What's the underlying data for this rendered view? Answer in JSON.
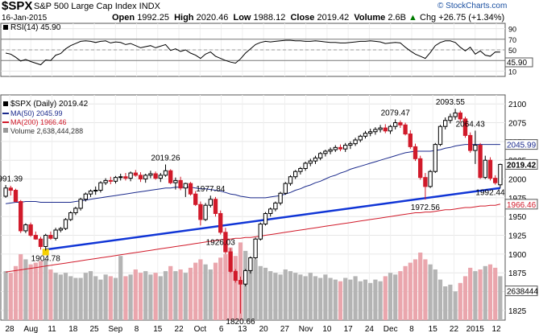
{
  "header": {
    "symbol": "$SPX",
    "name": "S&P 500 Large Cap Index INDX",
    "date": "16-Jan-2015",
    "open_label": "Open",
    "open": "1992.25",
    "high_label": "High",
    "high": "2020.46",
    "low_label": "Low",
    "low": "1988.12",
    "close_label": "Close",
    "close": "2019.42",
    "volume_label": "Volume",
    "volume": "2.6B",
    "change": "Chg +26.75 (+1.34%)",
    "change_arrow": "▲",
    "credit": "© StockCharts.com"
  },
  "rsi_panel": {
    "legend": "RSI(14) 45.90",
    "current_badge": "45.90",
    "ticks": [
      "90",
      "70",
      "50",
      "30",
      "10"
    ]
  },
  "legend": {
    "price": "$SPX (Daily) 2019.42",
    "ma50": "MA(50) 2045.99",
    "ma200": "MA(200) 1966.46",
    "volume": "Volume 2,638,444,288"
  },
  "price_axis": {
    "ticks": [
      "2100",
      "2075",
      "2050",
      "2025",
      "2000",
      "1975",
      "1950",
      "1925",
      "1900",
      "1875",
      "1850",
      "1825"
    ],
    "badges": {
      "ma50": "2045.99",
      "close": "2019.42",
      "ma200": "1966.46",
      "volume": "2638444"
    }
  },
  "annotations": [
    {
      "text": "1991.39",
      "value": 1991.39
    },
    {
      "text": "1904.78",
      "value": 1904.78
    },
    {
      "text": "2019.26",
      "value": 2019.26
    },
    {
      "text": "1977.84",
      "value": 1977.84
    },
    {
      "text": "1926.03",
      "value": 1926.03
    },
    {
      "text": "1820.66",
      "value": 1820.66
    },
    {
      "text": "2079.47",
      "value": 2079.47
    },
    {
      "text": "1972.56",
      "value": 1972.56
    },
    {
      "text": "2093.55",
      "value": 2093.55
    },
    {
      "text": "2064.43",
      "value": 2064.43
    },
    {
      "text": "1992.44",
      "value": 1992.44
    }
  ],
  "x_axis": {
    "labels": [
      "28",
      "Aug",
      "11",
      "18",
      "25",
      "Sep",
      "8",
      "15",
      "22",
      "Oct",
      "6",
      "13",
      "20",
      "27",
      "Nov",
      "10",
      "17",
      "24",
      "Dec",
      "8",
      "15",
      "22",
      "2015",
      "12"
    ]
  },
  "colors": {
    "up": "#000000",
    "down": "#d11a2a",
    "ma50": "#1b2a8c",
    "ma200": "#d11a2a",
    "trendline": "#1035d6",
    "vol_up": "#b4b4b4",
    "vol_down": "#eaa6ad",
    "rsi": "#000000"
  },
  "chart_data": {
    "type": "candlestick",
    "title": "$SPX S&P 500 Large Cap Index INDX",
    "ylim": [
      1812,
      2112
    ],
    "rsi_ylim": [
      0,
      100
    ],
    "ohlc": [
      [
        1977,
        1992,
        1975,
        1988
      ],
      [
        1988,
        1991,
        1978,
        1985
      ],
      [
        1985,
        1987,
        1969,
        1970
      ],
      [
        1970,
        1972,
        1928,
        1931
      ],
      [
        1931,
        1941,
        1928,
        1939
      ],
      [
        1939,
        1942,
        1923,
        1925
      ],
      [
        1925,
        1930,
        1919,
        1920
      ],
      [
        1920,
        1923,
        1906,
        1910
      ],
      [
        1910,
        1927,
        1904.78,
        1925
      ],
      [
        1925,
        1930,
        1919,
        1921
      ],
      [
        1921,
        1935,
        1918,
        1932
      ],
      [
        1932,
        1936,
        1929,
        1934
      ],
      [
        1934,
        1948,
        1932,
        1946
      ],
      [
        1946,
        1957,
        1944,
        1955
      ],
      [
        1955,
        1963,
        1952,
        1961
      ],
      [
        1961,
        1975,
        1958,
        1973
      ],
      [
        1973,
        1982,
        1970,
        1980
      ],
      [
        1980,
        1986,
        1976,
        1984
      ],
      [
        1984,
        1990,
        1979,
        1985
      ],
      [
        1985,
        1997,
        1982,
        1995
      ],
      [
        1995,
        2001,
        1992,
        1998
      ],
      [
        1998,
        2003,
        1993,
        1997
      ],
      [
        1997,
        2004,
        1994,
        2002
      ],
      [
        2002,
        2007,
        1998,
        2003
      ],
      [
        2003,
        2008,
        1998,
        2001
      ],
      [
        2001,
        2010,
        1997,
        2008
      ],
      [
        2008,
        2012,
        2003,
        2005
      ],
      [
        2005,
        2009,
        1996,
        2000
      ],
      [
        2000,
        2007,
        1995,
        2005
      ],
      [
        2005,
        2011,
        2001,
        2007
      ],
      [
        2007,
        2010,
        1999,
        2001
      ],
      [
        2001,
        2008,
        1996,
        2005
      ],
      [
        2005,
        2019.26,
        2003,
        2011
      ],
      [
        2011,
        2013,
        1993,
        1995
      ],
      [
        1995,
        2002,
        1986,
        1998
      ],
      [
        1998,
        2003,
        1985,
        1988
      ],
      [
        1988,
        1995,
        1976,
        1994
      ],
      [
        1994,
        1996,
        1978,
        1980
      ],
      [
        1980,
        1984,
        1964,
        1966
      ],
      [
        1966,
        1970,
        1938,
        1946
      ],
      [
        1946,
        1968,
        1944,
        1965
      ],
      [
        1965,
        1977.84,
        1962,
        1973
      ],
      [
        1973,
        1976,
        1950,
        1954
      ],
      [
        1954,
        1958,
        1926.03,
        1929
      ],
      [
        1929,
        1935,
        1900,
        1903
      ],
      [
        1903,
        1908,
        1875,
        1877
      ],
      [
        1877,
        1880,
        1862,
        1865
      ],
      [
        1865,
        1870,
        1820.66,
        1860
      ],
      [
        1860,
        1880,
        1857,
        1878
      ],
      [
        1878,
        1897,
        1874,
        1895
      ],
      [
        1895,
        1922,
        1893,
        1920
      ],
      [
        1920,
        1942,
        1918,
        1940
      ],
      [
        1940,
        1956,
        1938,
        1954
      ],
      [
        1954,
        1962,
        1950,
        1960
      ],
      [
        1960,
        1970,
        1957,
        1968
      ],
      [
        1968,
        1983,
        1965,
        1981
      ],
      [
        1981,
        1996,
        1979,
        1994
      ],
      [
        1994,
        2005,
        1991,
        2003
      ],
      [
        2003,
        2012,
        2000,
        2010
      ],
      [
        2010,
        2016,
        2006,
        2014
      ],
      [
        2014,
        2023,
        2011,
        2021
      ],
      [
        2021,
        2027,
        2017,
        2024
      ],
      [
        2024,
        2031,
        2020,
        2028
      ],
      [
        2028,
        2036,
        2025,
        2034
      ],
      [
        2034,
        2039,
        2030,
        2037
      ],
      [
        2037,
        2042,
        2033,
        2039
      ],
      [
        2039,
        2045,
        2036,
        2042
      ],
      [
        2042,
        2046,
        2037,
        2040
      ],
      [
        2040,
        2048,
        2036,
        2045
      ],
      [
        2045,
        2050,
        2040,
        2047
      ],
      [
        2047,
        2055,
        2044,
        2052
      ],
      [
        2052,
        2059,
        2049,
        2057
      ],
      [
        2057,
        2064,
        2054,
        2061
      ],
      [
        2061,
        2067,
        2057,
        2063
      ],
      [
        2063,
        2069,
        2059,
        2066
      ],
      [
        2066,
        2072,
        2062,
        2068
      ],
      [
        2068,
        2073,
        2061,
        2064
      ],
      [
        2064,
        2072,
        2060,
        2070
      ],
      [
        2070,
        2079.47,
        2066,
        2075
      ],
      [
        2075,
        2078,
        2068,
        2072
      ],
      [
        2072,
        2075,
        2058,
        2060
      ],
      [
        2060,
        2065,
        2040,
        2043
      ],
      [
        2043,
        2047,
        2024,
        2027
      ],
      [
        2027,
        2031,
        1999,
        2002
      ],
      [
        2002,
        2008,
        1972.56,
        1990
      ],
      [
        1990,
        2012,
        1988,
        2010
      ],
      [
        2010,
        2048,
        2008,
        2046
      ],
      [
        2046,
        2072,
        2044,
        2070
      ],
      [
        2070,
        2082,
        2066,
        2078
      ],
      [
        2078,
        2087,
        2074,
        2083
      ],
      [
        2083,
        2093.55,
        2079,
        2088
      ],
      [
        2088,
        2091,
        2076,
        2080
      ],
      [
        2080,
        2083,
        2055,
        2058
      ],
      [
        2058,
        2062,
        2035,
        2038
      ],
      [
        2038,
        2064.43,
        2020,
        2045
      ],
      [
        2045,
        2048,
        2000,
        2002
      ],
      [
        2002,
        2031,
        2000,
        2025
      ],
      [
        2025,
        2029,
        1998,
        2001
      ],
      [
        2001,
        2005,
        1992.44,
        1995
      ],
      [
        1992.25,
        2020.46,
        1988.12,
        2019.42
      ]
    ],
    "volume_scale": [
      0,
      5000000000
    ],
    "volume": [
      2900000000.0,
      2800000000.0,
      3200000000.0,
      3900000000.0,
      3600000000.0,
      3300000000.0,
      3400000000.0,
      3500000000.0,
      3600000000.0,
      3000000000.0,
      2800000000.0,
      2700000000.0,
      2800000000.0,
      2600000000.0,
      2500000000.0,
      2500000000.0,
      2800000000.0,
      2900000000.0,
      2600000000.0,
      2400000000.0,
      2700000000.0,
      2600000000.0,
      2500000000.0,
      3800000000.0,
      2600000000.0,
      2700000000.0,
      3000000000.0,
      2800000000.0,
      2900000000.0,
      2700000000.0,
      2800000000.0,
      2600000000.0,
      2900000000.0,
      3200000000.0,
      2900000000.0,
      3000000000.0,
      2800000000.0,
      3100000000.0,
      3400000000.0,
      3600000000.0,
      3300000000.0,
      3000000000.0,
      3400000000.0,
      3700000000.0,
      3900000000.0,
      4300000000.0,
      3800000000.0,
      4600000000.0,
      4100000000.0,
      3500000000.0,
      3600000000.0,
      3200000000.0,
      3100000000.0,
      2900000000.0,
      2800000000.0,
      2700000000.0,
      3000000000.0,
      2900000000.0,
      2800000000.0,
      2700000000.0,
      2600000000.0,
      2800000000.0,
      2600000000.0,
      2500000000.0,
      2700000000.0,
      2500000000.0,
      2400000000.0,
      2300000000.0,
      2500000000.0,
      2400000000.0,
      2600000000.0,
      2300000000.0,
      2400000000.0,
      2200000000.0,
      2400000000.0,
      2300000000.0,
      2600000000.0,
      2800000000.0,
      2700000000.0,
      2900000000.0,
      3200000000.0,
      3400000000.0,
      3600000000.0,
      4000000000.0,
      3600000000.0,
      3300000000.0,
      3000000000.0,
      2400000000.0,
      2000000000.0,
      2100000000.0,
      1700000000.0,
      2200000000.0,
      2600000000.0,
      3100000000.0,
      2900000000.0,
      3000000000.0,
      3200000000.0,
      3300000000.0,
      3100000000.0,
      2600000000.0
    ],
    "ma50": [
      1967,
      1968,
      1969,
      1969,
      1970,
      1970,
      1970,
      1969,
      1969,
      1969,
      1969,
      1969,
      1969,
      1969,
      1970,
      1971,
      1972,
      1973,
      1974,
      1975,
      1976,
      1977,
      1978,
      1979,
      1980,
      1981,
      1982,
      1983,
      1984,
      1985,
      1986,
      1987,
      1988,
      1988,
      1989,
      1989,
      1989,
      1989,
      1988,
      1987,
      1987,
      1986,
      1985,
      1984,
      1982,
      1980,
      1979,
      1977,
      1976,
      1975,
      1975,
      1975,
      1975,
      1976,
      1977,
      1978,
      1980,
      1982,
      1985,
      1987,
      1990,
      1992,
      1995,
      1997,
      2000,
      2003,
      2005,
      2008,
      2010,
      2013,
      2015,
      2017,
      2019,
      2021,
      2023,
      2025,
      2027,
      2029,
      2031,
      2033,
      2035,
      2036,
      2037,
      2037,
      2037,
      2037,
      2038,
      2039,
      2041,
      2042,
      2044,
      2045,
      2046,
      2046,
      2046,
      2046,
      2046,
      2046,
      2046,
      2045.99
    ],
    "ma200": [
      1876,
      1877,
      1878,
      1879,
      1880,
      1881,
      1882,
      1883,
      1884,
      1885,
      1886,
      1887,
      1888,
      1889,
      1890,
      1891,
      1892,
      1893,
      1894,
      1895,
      1896,
      1897,
      1898,
      1899,
      1900,
      1901,
      1902,
      1903,
      1904,
      1905,
      1906,
      1907,
      1908,
      1909,
      1910,
      1911,
      1912,
      1913,
      1914,
      1915,
      1916,
      1917,
      1918,
      1919,
      1920,
      1920,
      1921,
      1921,
      1922,
      1922,
      1923,
      1924,
      1925,
      1926,
      1927,
      1928,
      1929,
      1930,
      1931,
      1932,
      1933,
      1934,
      1935,
      1936,
      1937,
      1938,
      1939,
      1940,
      1941,
      1942,
      1943,
      1944,
      1945,
      1946,
      1947,
      1948,
      1949,
      1950,
      1951,
      1952,
      1953,
      1954,
      1955,
      1955,
      1956,
      1956,
      1957,
      1958,
      1959,
      1959,
      1960,
      1961,
      1962,
      1962,
      1963,
      1964,
      1964,
      1965,
      1965,
      1966.46
    ],
    "trendline": [
      [
        8,
        1906
      ],
      [
        99,
        1988
      ]
    ],
    "rsi": [
      44,
      42,
      36,
      29,
      32,
      28,
      25,
      22,
      31,
      30,
      40,
      43,
      52,
      58,
      62,
      66,
      67,
      66,
      64,
      66,
      67,
      63,
      65,
      64,
      60,
      62,
      58,
      54,
      56,
      58,
      54,
      57,
      60,
      49,
      52,
      47,
      50,
      44,
      40,
      34,
      42,
      46,
      38,
      34,
      30,
      27,
      25,
      33,
      44,
      52,
      60,
      64,
      66,
      65,
      66,
      67,
      68,
      68,
      67,
      67,
      66,
      66,
      67,
      66,
      65,
      64,
      64,
      63,
      63,
      64,
      65,
      66,
      66,
      67,
      66,
      65,
      62,
      63,
      64,
      63,
      55,
      48,
      42,
      38,
      34,
      45,
      58,
      64,
      67,
      67,
      64,
      55,
      48,
      55,
      42,
      48,
      40,
      38,
      46,
      45.9
    ]
  }
}
